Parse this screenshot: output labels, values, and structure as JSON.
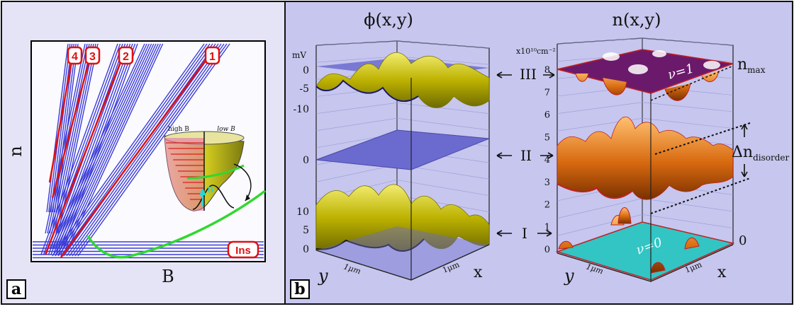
{
  "colors": {
    "panel_a_bg": "#e4e4f6",
    "panel_b_bg": "#c6c6ee",
    "landau_blue": "#3b3bd8",
    "percolation_red": "#e01010",
    "insulator_green": "#30d830",
    "surface_gold": "#c8c000",
    "surface_copper": "#d86a10",
    "plane_purple": "#6b1a6b",
    "plane_cyan": "#33c4c4",
    "plane_blue": "#6b6bcf"
  },
  "panel_a": {
    "label": "a",
    "x_axis_label": "B",
    "y_axis_label": "n",
    "fan_tags": [
      "4",
      "3",
      "2",
      "1"
    ],
    "insulator_tag": "Ins",
    "inset": {
      "left_label": "high B",
      "right_label": "low B",
      "arrow_label": "B"
    }
  },
  "panel_b": {
    "label": "b",
    "left_title": "ϕ(x,y)",
    "right_title": "n(x,y)",
    "left_unit": "mV",
    "left_top_ticks": [
      "0",
      "-5",
      "-10"
    ],
    "left_mid_tick": "0",
    "left_bottom_ticks": [
      "10",
      "5",
      "0"
    ],
    "left_y_label": "y",
    "left_x_label": "x",
    "left_y_scale": "1μm",
    "left_x_scale": "1μm",
    "right_unit": "x10¹⁰cm⁻²",
    "right_ticks": [
      "8",
      "7",
      "6",
      "5",
      "4",
      "3",
      "2",
      "1",
      "0"
    ],
    "right_y_label": "y",
    "right_x_label": "x",
    "right_y_scale": "1μm",
    "right_x_scale": "1μm",
    "right_zero_label": "0",
    "n_max_label": "n",
    "n_max_sub": "max",
    "delta_label": "Δn",
    "delta_sub": "disorder",
    "nu_top": "ν=1",
    "nu_bottom": "ν=0",
    "regimes": [
      {
        "label": "III"
      },
      {
        "label": "II"
      },
      {
        "label": "I"
      }
    ]
  }
}
